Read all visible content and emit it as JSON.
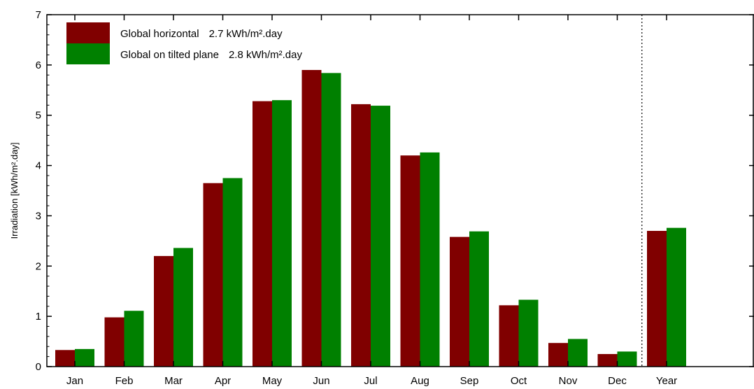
{
  "chart_data": {
    "type": "bar",
    "title": "",
    "xlabel": "",
    "ylabel": "Irradiation [kWh/m².day]",
    "ylim": [
      0,
      7
    ],
    "yticks": [
      "0",
      "1",
      "2",
      "3",
      "4",
      "5",
      "6",
      "7"
    ],
    "grid": false,
    "legend_position": "top-left",
    "categories": [
      "Jan",
      "Feb",
      "Mar",
      "Apr",
      "May",
      "Jun",
      "Jul",
      "Aug",
      "Sep",
      "Oct",
      "Nov",
      "Dec",
      "Year"
    ],
    "series": [
      {
        "name": "Global horizontal",
        "summary": "2.7 kWh/m².day",
        "color": "#800000",
        "values": [
          0.33,
          0.98,
          2.2,
          3.65,
          5.28,
          5.9,
          5.22,
          4.2,
          2.58,
          1.22,
          0.47,
          0.25,
          2.7
        ]
      },
      {
        "name": "Global on tilted plane",
        "summary": "2.8 kWh/m².day",
        "color": "#008000",
        "values": [
          0.35,
          1.11,
          2.36,
          3.75,
          5.3,
          5.84,
          5.19,
          4.26,
          2.69,
          1.33,
          0.55,
          0.3,
          2.76
        ]
      }
    ]
  }
}
